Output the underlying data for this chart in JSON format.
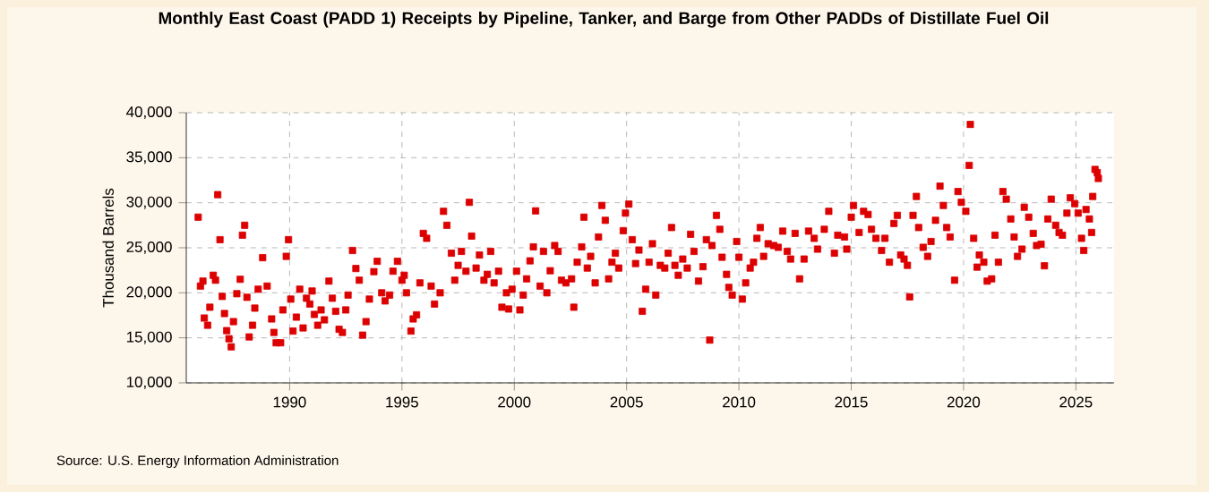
{
  "chart_data": {
    "type": "scatter",
    "title": "Monthly East Coast (PADD 1) Receipts by Pipeline, Tanker, and Barge from Other PADDs of Distillate Fuel Oil",
    "ylabel": "Thousand Barrels",
    "annotations": [
      "Source: U.S. Energy Information Administration"
    ],
    "color": "#dd0000",
    "marker": "square",
    "grid": true,
    "xlim": [
      1985.4,
      2026.7
    ],
    "xticks": [
      1990,
      1995,
      2000,
      2005,
      2010,
      2015,
      2020,
      2025
    ],
    "ylim": [
      10000,
      40000
    ],
    "yticks": [
      {
        "value": 10000,
        "label": "10,000"
      },
      {
        "value": 15000,
        "label": "15,000"
      },
      {
        "value": 20000,
        "label": "20,000"
      },
      {
        "value": 25000,
        "label": "25,000"
      },
      {
        "value": 30000,
        "label": "30,000"
      },
      {
        "value": 35000,
        "label": "35,000"
      },
      {
        "value": 40000,
        "label": "40,000"
      }
    ],
    "x": [
      1985.93,
      1986.03,
      1986.14,
      1986.2,
      1986.35,
      1986.45,
      1986.6,
      1986.7,
      1986.8,
      1986.9,
      1987.0,
      1987.1,
      1987.2,
      1987.3,
      1987.4,
      1987.5,
      1987.65,
      1987.8,
      1987.9,
      1988.0,
      1988.1,
      1988.2,
      1988.35,
      1988.45,
      1988.6,
      1988.8,
      1989.0,
      1989.2,
      1989.3,
      1989.4,
      1989.6,
      1989.7,
      1989.85,
      1989.95,
      1990.05,
      1990.15,
      1990.3,
      1990.45,
      1990.6,
      1990.75,
      1990.9,
      1991.0,
      1991.1,
      1991.25,
      1991.4,
      1991.55,
      1991.75,
      1991.9,
      1992.05,
      1992.2,
      1992.35,
      1992.5,
      1992.6,
      1992.8,
      1992.95,
      1993.1,
      1993.25,
      1993.4,
      1993.55,
      1993.75,
      1993.9,
      1994.1,
      1994.25,
      1994.45,
      1994.6,
      1994.8,
      1995.0,
      1995.1,
      1995.2,
      1995.4,
      1995.5,
      1995.65,
      1995.8,
      1995.95,
      1996.1,
      1996.3,
      1996.45,
      1996.7,
      1996.85,
      1997.0,
      1997.2,
      1997.35,
      1997.5,
      1997.65,
      1997.85,
      1998.0,
      1998.1,
      1998.3,
      1998.45,
      1998.65,
      1998.8,
      1998.95,
      1999.1,
      1999.3,
      1999.45,
      1999.65,
      1999.75,
      1999.9,
      2000.1,
      2000.25,
      2000.4,
      2000.55,
      2000.7,
      2000.85,
      2000.95,
      2001.15,
      2001.3,
      2001.45,
      2001.6,
      2001.8,
      2001.95,
      2002.1,
      2002.3,
      2002.55,
      2002.65,
      2002.8,
      2003.0,
      2003.1,
      2003.25,
      2003.4,
      2003.6,
      2003.75,
      2003.9,
      2004.05,
      2004.2,
      2004.35,
      2004.5,
      2004.65,
      2004.85,
      2004.95,
      2005.1,
      2005.25,
      2005.4,
      2005.55,
      2005.7,
      2005.85,
      2006.0,
      2006.15,
      2006.3,
      2006.5,
      2006.7,
      2006.85,
      2007.0,
      2007.15,
      2007.3,
      2007.5,
      2007.7,
      2007.85,
      2008.0,
      2008.2,
      2008.4,
      2008.55,
      2008.7,
      2008.8,
      2009.0,
      2009.15,
      2009.25,
      2009.45,
      2009.55,
      2009.7,
      2009.9,
      2010.0,
      2010.15,
      2010.3,
      2010.5,
      2010.65,
      2010.8,
      2010.95,
      2011.1,
      2011.3,
      2011.55,
      2011.75,
      2011.95,
      2012.15,
      2012.3,
      2012.5,
      2012.7,
      2012.9,
      2013.1,
      2013.35,
      2013.5,
      2013.8,
      2014.0,
      2014.25,
      2014.4,
      2014.7,
      2014.8,
      2015.0,
      2015.1,
      2015.35,
      2015.55,
      2015.75,
      2015.9,
      2016.1,
      2016.35,
      2016.5,
      2016.7,
      2016.9,
      2017.05,
      2017.2,
      2017.35,
      2017.5,
      2017.6,
      2017.75,
      2017.9,
      2018.0,
      2018.2,
      2018.4,
      2018.55,
      2018.75,
      2018.95,
      2019.1,
      2019.25,
      2019.4,
      2019.6,
      2019.75,
      2019.9,
      2020.1,
      2020.25,
      2020.3,
      2020.45,
      2020.6,
      2020.7,
      2020.9,
      2021.05,
      2021.25,
      2021.4,
      2021.55,
      2021.75,
      2021.9,
      2022.1,
      2022.25,
      2022.4,
      2022.6,
      2022.7,
      2022.9,
      2023.1,
      2023.25,
      2023.45,
      2023.6,
      2023.75,
      2023.9,
      2024.1,
      2024.25,
      2024.4,
      2024.6,
      2024.75,
      2024.95,
      2025.1,
      2025.25,
      2025.35,
      2025.45,
      2025.6,
      2025.7,
      2025.75,
      2025.85,
      2025.95,
      2026.0
    ],
    "values": [
      28400,
      20750,
      21300,
      17200,
      16400,
      18400,
      21950,
      21400,
      30900,
      25900,
      19600,
      17700,
      15800,
      14900,
      14000,
      16800,
      19900,
      21500,
      26400,
      27500,
      19500,
      15100,
      16400,
      18300,
      20400,
      23900,
      20750,
      17100,
      15600,
      14450,
      14450,
      18100,
      24050,
      25900,
      19300,
      15750,
      17300,
      20400,
      16100,
      19400,
      18750,
      20200,
      17600,
      16400,
      18100,
      17000,
      21300,
      19400,
      17950,
      15950,
      15600,
      18100,
      19750,
      24700,
      22700,
      21400,
      15300,
      16800,
      19300,
      22350,
      23500,
      20000,
      19100,
      19750,
      22400,
      23500,
      21400,
      21950,
      20000,
      15750,
      17100,
      17550,
      21100,
      26600,
      26050,
      20750,
      18750,
      20000,
      29050,
      27500,
      24400,
      21400,
      23050,
      24600,
      22400,
      30050,
      26300,
      22750,
      24200,
      21400,
      22050,
      24600,
      21100,
      22400,
      18400,
      20000,
      18200,
      20400,
      22400,
      18100,
      19750,
      21550,
      23550,
      25100,
      29100,
      20750,
      24600,
      20000,
      22450,
      25250,
      24600,
      21400,
      21100,
      21550,
      18400,
      23400,
      25100,
      28400,
      22750,
      24050,
      21100,
      26200,
      29700,
      28050,
      21550,
      23400,
      24400,
      22750,
      26900,
      28850,
      29850,
      25900,
      23250,
      24750,
      17950,
      20400,
      23400,
      25450,
      19750,
      23050,
      22750,
      24400,
      27250,
      23050,
      21950,
      23750,
      22750,
      26500,
      24600,
      21300,
      22900,
      25900,
      14750,
      25250,
      28600,
      27050,
      23950,
      22050,
      20600,
      19750,
      25700,
      23950,
      19300,
      21100,
      22750,
      23400,
      26050,
      27250,
      24050,
      25450,
      25250,
      25050,
      26850,
      24600,
      23750,
      26600,
      21550,
      23750,
      26850,
      26050,
      24850,
      27050,
      29050,
      24400,
      26400,
      26200,
      24850,
      28400,
      29700,
      26700,
      29050,
      28700,
      27050,
      26050,
      24700,
      26050,
      23400,
      27700,
      28600,
      24200,
      23750,
      23050,
      19550,
      28600,
      30700,
      27250,
      25050,
      24050,
      25700,
      28050,
      31850,
      29700,
      27250,
      26200,
      21400,
      31250,
      30050,
      29050,
      34150,
      38700,
      26050,
      22850,
      24200,
      23400,
      21300,
      21550,
      26400,
      23400,
      31250,
      30400,
      28200,
      26200,
      24050,
      24850,
      29500,
      28400,
      26600,
      25250,
      25400,
      23000,
      28200,
      30400,
      27500,
      26700,
      26400,
      28850,
      30550,
      29900,
      28850,
      26050,
      24700,
      29250,
      28200,
      26700,
      30700,
      33700,
      33350,
      32700
    ]
  }
}
